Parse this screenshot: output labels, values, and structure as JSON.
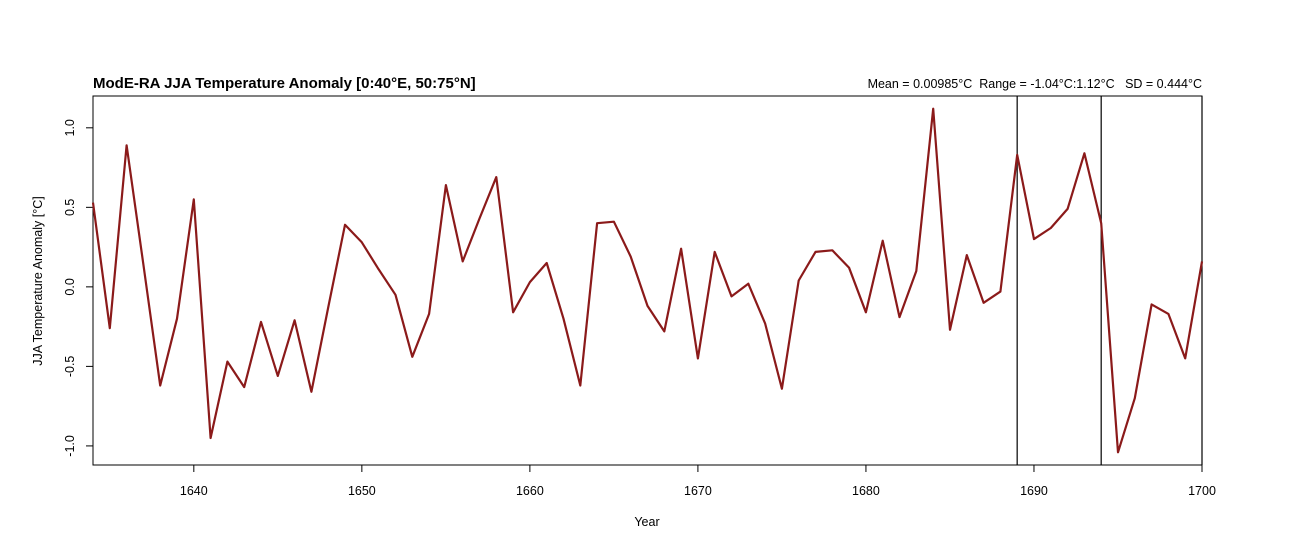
{
  "chart_data": {
    "type": "line",
    "title": "ModE-RA JJA Temperature Anomaly [0:40°E, 50:75°N]",
    "stats_text": "Mean = 0.00985°C  Range = -1.04°C:1.12°C   SD = 0.444°C",
    "xlabel": "Year",
    "ylabel": "JJA Temperature Anomaly [°C]",
    "xlim": [
      1634,
      1700
    ],
    "ylim": [
      -1.12,
      1.2
    ],
    "x_ticks": [
      1640,
      1650,
      1660,
      1670,
      1680,
      1690,
      1700
    ],
    "y_ticks": [
      -1.0,
      -0.5,
      0.0,
      0.5,
      1.0
    ],
    "y_tick_labels": [
      "-1.0",
      "-0.5",
      "0.0",
      "0.5",
      "1.0"
    ],
    "line_color": "#8b1a1a",
    "vlines": [
      1689,
      1694,
      1700
    ],
    "series": [
      {
        "x": [
          1634,
          1635,
          1636,
          1637,
          1638,
          1639,
          1640,
          1641,
          1642,
          1643,
          1644,
          1645,
          1646,
          1647,
          1648,
          1649,
          1650,
          1651,
          1652,
          1653,
          1654,
          1655,
          1656,
          1657,
          1658,
          1659,
          1660,
          1661,
          1662,
          1663,
          1664,
          1665,
          1666,
          1667,
          1668,
          1669,
          1670,
          1671,
          1672,
          1673,
          1674,
          1675,
          1676,
          1677,
          1678,
          1679,
          1680,
          1681,
          1682,
          1683,
          1684,
          1685,
          1686,
          1687,
          1688,
          1689,
          1690,
          1691,
          1692,
          1693,
          1694,
          1695,
          1696,
          1697,
          1698,
          1699,
          1700
        ],
        "values": [
          0.53,
          -0.26,
          0.89,
          0.14,
          -0.62,
          -0.2,
          0.55,
          -0.95,
          -0.47,
          -0.63,
          -0.22,
          -0.56,
          -0.21,
          -0.66,
          -0.13,
          0.39,
          0.28,
          0.11,
          -0.05,
          -0.44,
          -0.17,
          0.64,
          0.16,
          0.43,
          0.69,
          -0.16,
          0.03,
          0.15,
          -0.2,
          -0.62,
          0.4,
          0.41,
          0.19,
          -0.12,
          -0.28,
          0.24,
          -0.45,
          0.22,
          -0.06,
          0.02,
          -0.23,
          -0.64,
          0.04,
          0.22,
          0.23,
          0.12,
          -0.16,
          0.29,
          -0.19,
          0.1,
          1.12,
          -0.27,
          0.2,
          -0.1,
          -0.03,
          0.83,
          0.3,
          0.37,
          0.49,
          0.84,
          0.4,
          -1.04,
          -0.7,
          -0.11,
          -0.17,
          -0.45,
          0.16
        ]
      }
    ]
  }
}
